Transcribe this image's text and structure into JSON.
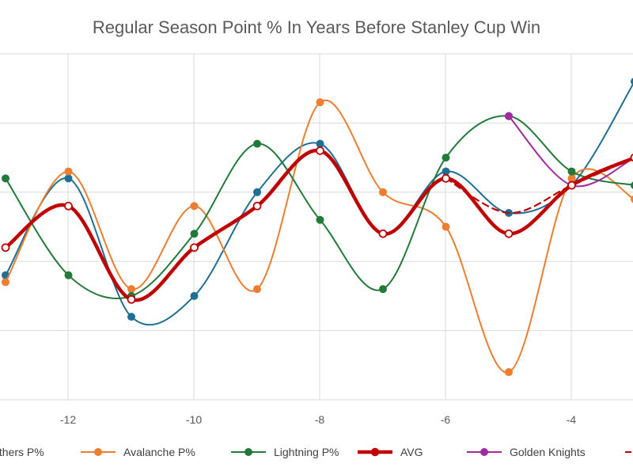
{
  "chart_data": {
    "type": "line",
    "title": "Regular Season Point % In Years Before Stanley Cup Win",
    "x": [
      -13,
      -12,
      -11,
      -10,
      -9,
      -8,
      -7,
      -6,
      -5,
      -4,
      -3
    ],
    "x_ticks": [
      "-12",
      "-10",
      "-8",
      "-6",
      "-4"
    ],
    "xlim": [
      -13,
      -3
    ],
    "ylim": [
      0.3,
      0.8
    ],
    "grid": true,
    "legend_position": "bottom",
    "series": [
      {
        "name": "Panthers P%",
        "color": "#1f6e94",
        "style": "line",
        "values": [
          0.48,
          0.62,
          0.42,
          0.45,
          0.6,
          0.67,
          0.54,
          0.63,
          0.57,
          0.61,
          0.76
        ]
      },
      {
        "name": "Avalanche P%",
        "color": "#ed7d31",
        "style": "line",
        "values": [
          0.47,
          0.63,
          0.46,
          0.58,
          0.46,
          0.73,
          0.6,
          0.55,
          0.34,
          0.62,
          0.59
        ]
      },
      {
        "name": "Lightning P%",
        "color": "#217a39",
        "style": "line",
        "values": [
          0.62,
          0.48,
          0.45,
          0.54,
          0.67,
          0.56,
          0.46,
          0.65,
          0.71,
          0.63,
          0.61
        ]
      },
      {
        "name": "AVG",
        "color": "#c00000",
        "style": "thick",
        "values": [
          0.52,
          0.58,
          0.445,
          0.52,
          0.58,
          0.66,
          0.54,
          0.62,
          0.54,
          0.61,
          0.65
        ]
      },
      {
        "name": "Golden Knights",
        "color": "#a02ba0",
        "style": "line",
        "values": [
          null,
          null,
          null,
          null,
          null,
          null,
          null,
          null,
          0.71,
          0.61,
          0.65
        ]
      },
      {
        "name": "",
        "color": "#c00000",
        "style": "dashed",
        "values": [
          null,
          null,
          null,
          null,
          null,
          null,
          null,
          0.62,
          0.57,
          0.61,
          0.65
        ]
      }
    ]
  }
}
